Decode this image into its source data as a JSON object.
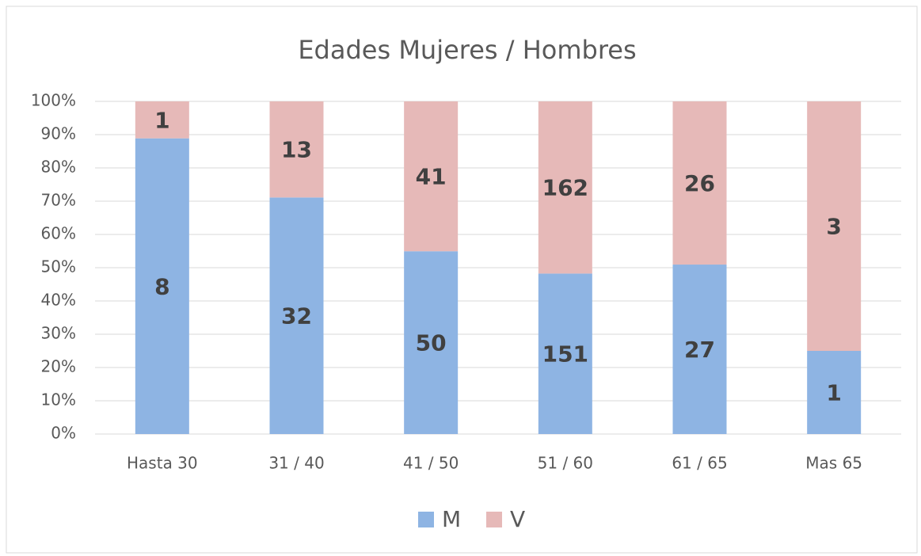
{
  "chart_data": {
    "type": "bar",
    "stacked": "percent",
    "title": "Edades Mujeres / Hombres",
    "categories": [
      "Hasta 30",
      "31 / 40",
      "41 / 50",
      "51 / 60",
      "61 / 65",
      "Mas 65"
    ],
    "series": [
      {
        "name": "M",
        "color": "#8eb4e3",
        "values": [
          8,
          32,
          50,
          151,
          27,
          1
        ]
      },
      {
        "name": "V",
        "color": "#e6b9b8",
        "values": [
          1,
          13,
          41,
          162,
          26,
          3
        ]
      }
    ],
    "ylim": [
      0,
      100
    ],
    "yticks": [
      {
        "value": 0,
        "label": "0%"
      },
      {
        "value": 10,
        "label": "10%"
      },
      {
        "value": 20,
        "label": "20%"
      },
      {
        "value": 30,
        "label": "30%"
      },
      {
        "value": 40,
        "label": "40%"
      },
      {
        "value": 50,
        "label": "50%"
      },
      {
        "value": 60,
        "label": "60%"
      },
      {
        "value": 70,
        "label": "70%"
      },
      {
        "value": 80,
        "label": "80%"
      },
      {
        "value": 90,
        "label": "90%"
      },
      {
        "value": 100,
        "label": "100%"
      }
    ],
    "grid": true,
    "legend": "bottom"
  }
}
